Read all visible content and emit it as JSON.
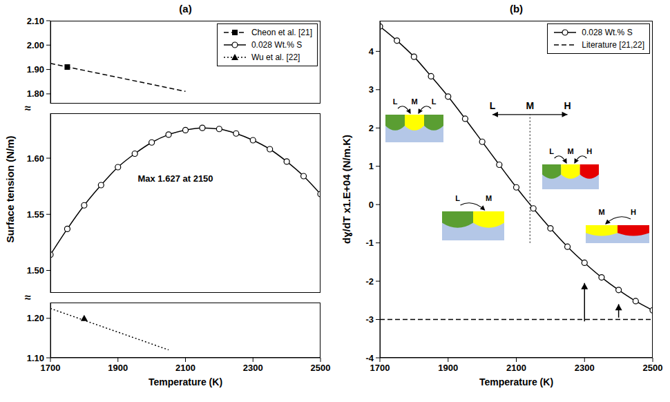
{
  "chart_data": [
    {
      "type": "line",
      "title": "(a)",
      "x_label": "Temperature (K)",
      "y_label": "Surface tension (N/m)",
      "xlim": [
        1700,
        2500
      ],
      "xticks": [
        1700,
        1900,
        2100,
        2300,
        2500
      ],
      "ylim": [
        1.1,
        2.1
      ],
      "yticks": [
        {
          "value": 1.1,
          "label": "1.10"
        },
        {
          "value": 1.2,
          "label": "1.20"
        },
        {
          "value": 1.5,
          "label": "1.50"
        },
        1.55,
        {
          "value": 1.6,
          "label": "1.60"
        },
        {
          "value": 1.8,
          "label": "1.80"
        },
        {
          "value": 1.9,
          "label": "1.90"
        },
        {
          "value": 2.0,
          "label": "2.00"
        },
        {
          "value": 2.1,
          "label": "2.10"
        }
      ],
      "y_breaks": [
        [
          1.24,
          1.48
        ],
        [
          1.64,
          1.76
        ]
      ],
      "break_label": "≈",
      "grid": false,
      "legend": "upper right",
      "series": [
        {
          "name": "Cheon et al. [21]",
          "color": "#000000",
          "line_style": "dashed",
          "marker": "square",
          "x": [
            1700,
            2100
          ],
          "values": [
            1.925,
            1.81
          ],
          "marker_x": [
            1750
          ],
          "marker_values": [
            1.91
          ]
        },
        {
          "name": "0.028 Wt.% S",
          "color": "#000000",
          "line_style": "solid",
          "marker": "circle",
          "x": [
            1700,
            1750,
            1800,
            1850,
            1900,
            1950,
            2000,
            2050,
            2100,
            2150,
            2200,
            2250,
            2300,
            2350,
            2400,
            2450,
            2500
          ],
          "values": [
            1.514,
            1.537,
            1.558,
            1.576,
            1.592,
            1.604,
            1.614,
            1.621,
            1.625,
            1.627,
            1.626,
            1.622,
            1.616,
            1.608,
            1.597,
            1.584,
            1.568
          ]
        },
        {
          "name": "Wu et al. [22]",
          "color": "#000000",
          "line_style": "dotted",
          "marker": "triangle",
          "x": [
            1700,
            2050
          ],
          "values": [
            1.225,
            1.12
          ],
          "marker_x": [
            1800
          ],
          "marker_values": [
            1.2
          ]
        }
      ],
      "annotations": [
        {
          "text": "Max 1.627 at 2150"
        }
      ]
    },
    {
      "type": "line",
      "title": "(b)",
      "x_label": "Temperature (K)",
      "y_label": "dɣ/dT x1.E+04 (N/m.K)",
      "xlim": [
        1700,
        2500
      ],
      "xticks": [
        1700,
        1900,
        2100,
        2300,
        2500
      ],
      "ylim": [
        -4,
        4.8
      ],
      "yticks": [
        -4,
        -3,
        -2,
        -1,
        0,
        1,
        2,
        3,
        4
      ],
      "grid": false,
      "legend": "upper right",
      "series": [
        {
          "name": "0.028 Wt.% S",
          "color": "#000000",
          "line_style": "solid",
          "marker": "circle",
          "x": [
            1700,
            1750,
            1800,
            1850,
            1900,
            1950,
            2000,
            2050,
            2100,
            2150,
            2200,
            2250,
            2300,
            2350,
            2400,
            2450,
            2500
          ],
          "values": [
            4.65,
            4.28,
            3.86,
            3.35,
            2.82,
            2.24,
            1.64,
            1.04,
            0.45,
            -0.1,
            -0.62,
            -1.1,
            -1.52,
            -1.9,
            -2.23,
            -2.52,
            -2.76
          ]
        },
        {
          "name": "Literature [21,22]",
          "color": "#000000",
          "line_style": "dashed",
          "x": [
            1700,
            2500
          ],
          "values": [
            -3,
            -3
          ]
        }
      ],
      "divider": {
        "x": 2140,
        "y": [
          -1.0,
          2.35
        ]
      },
      "regime_arrow": {
        "labels": [
          "L",
          "M",
          "H"
        ],
        "x": [
          2030,
          2250
        ],
        "y": 2.35
      },
      "arrows": [
        {
          "x": 2300,
          "from": -3.05,
          "to": -2.05
        },
        {
          "x": 2400,
          "from": -2.95,
          "to": -2.6
        }
      ],
      "insets": [
        {
          "labels": [
            "L",
            "M",
            "L"
          ]
        },
        {
          "labels": [
            "L",
            "M"
          ]
        },
        {
          "labels": [
            "L",
            "M",
            "H"
          ]
        },
        {
          "labels": [
            "M",
            "H"
          ]
        }
      ]
    }
  ]
}
